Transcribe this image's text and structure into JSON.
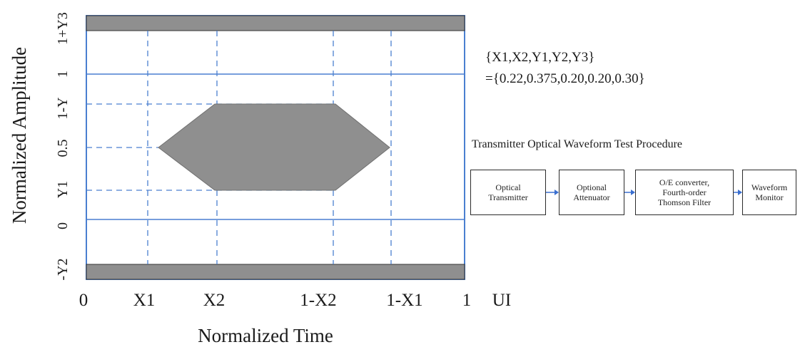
{
  "eye_mask": {
    "y_axis_label": "Normalized Amplitude",
    "x_axis_label": "Normalized Time",
    "y_tick_labels": [
      "1+Y3",
      "1",
      "1-Y",
      "0.5",
      "Y1",
      "0",
      "-Y2"
    ],
    "x_tick_labels": [
      "0",
      "X1",
      "X2",
      "1-X2",
      "1-X1",
      "1"
    ],
    "x_unit": "UI",
    "colors": {
      "mask_fill": "#8f8f8f",
      "grid_line": "#4a7fd0",
      "frame": "#4a7fd0"
    }
  },
  "parameters": {
    "line1": "{X1,X2,Y1,Y2,Y3}",
    "line2": "={0.22,0.375,0.20,0.20,0.30}"
  },
  "procedure": {
    "title": "Transmitter Optical Waveform Test Procedure",
    "steps": [
      {
        "lines": [
          "Optical",
          "Transmitter"
        ]
      },
      {
        "lines": [
          "Optional",
          "Attenuator"
        ]
      },
      {
        "lines": [
          "O/E converter,",
          "Fourth-order",
          "Thomson Filter"
        ]
      },
      {
        "lines": [
          "Waveform",
          "Monitor"
        ]
      }
    ],
    "arrow_color": "#3a6fd0"
  }
}
